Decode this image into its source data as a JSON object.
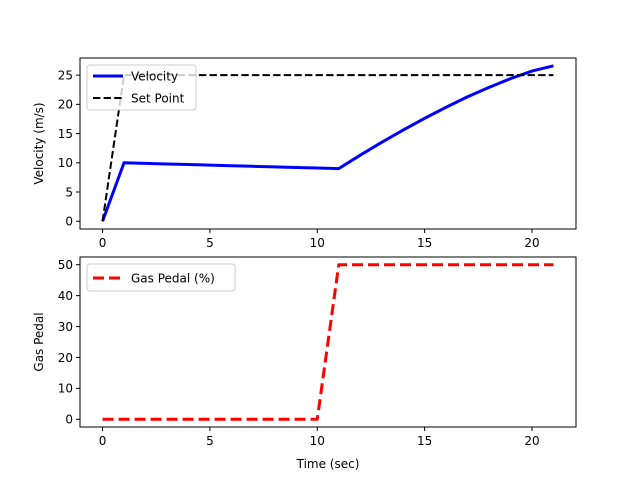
{
  "chart_data": [
    {
      "type": "line",
      "title": "",
      "xlabel": "",
      "ylabel": "Velocity (m/s)",
      "xlim": [
        -1.05,
        22.05
      ],
      "ylim": [
        -1.33,
        27.93
      ],
      "xticks": [
        0,
        5,
        10,
        15,
        20
      ],
      "yticks": [
        0,
        5,
        10,
        15,
        20,
        25
      ],
      "grid": false,
      "legend": "top-left",
      "series": [
        {
          "name": "Velocity",
          "color": "#0000ff",
          "style": "solid",
          "x": [
            0,
            1,
            2,
            3,
            4,
            5,
            6,
            7,
            8,
            9,
            10,
            11,
            12,
            13,
            14,
            15,
            16,
            17,
            18,
            19,
            20,
            21
          ],
          "y": [
            0,
            10,
            9.9,
            9.8,
            9.7,
            9.6,
            9.5,
            9.4,
            9.3,
            9.2,
            9.1,
            9.0,
            11.3,
            13.5,
            15.6,
            17.6,
            19.5,
            21.3,
            22.9,
            24.4,
            25.7,
            26.6
          ]
        },
        {
          "name": "Set Point",
          "color": "#000000",
          "style": "dashed",
          "x": [
            0,
            1,
            21
          ],
          "y": [
            0,
            25,
            25
          ]
        }
      ]
    },
    {
      "type": "line",
      "title": "",
      "xlabel": "Time (sec)",
      "ylabel": "Gas Pedal",
      "xlim": [
        -1.05,
        22.05
      ],
      "ylim": [
        -2.5,
        52.5
      ],
      "xticks": [
        0,
        5,
        10,
        15,
        20
      ],
      "yticks": [
        0,
        10,
        20,
        30,
        40,
        50
      ],
      "grid": false,
      "legend": "top-left",
      "series": [
        {
          "name": "Gas Pedal (%)",
          "color": "#ff0000",
          "style": "dashed",
          "x": [
            0,
            10,
            11,
            21
          ],
          "y": [
            0,
            0,
            50,
            50
          ]
        }
      ]
    }
  ]
}
